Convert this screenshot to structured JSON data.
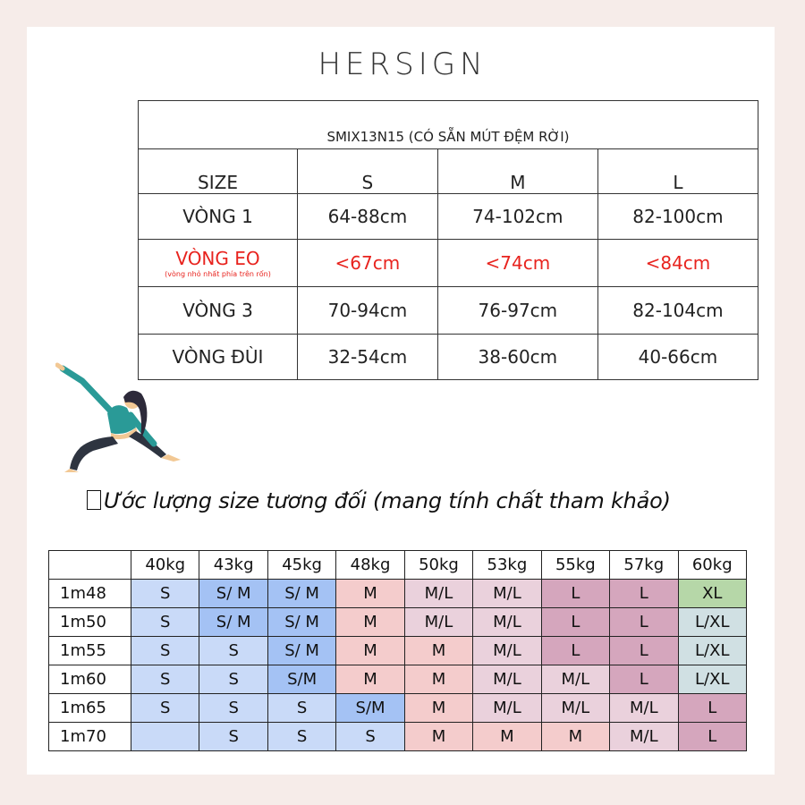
{
  "brand": "HERSIGN",
  "size_table": {
    "title": "SMIX13N15 (CÓ SẴN MÚT ĐỆM RỜI)",
    "header": [
      "SIZE",
      "S",
      "M",
      "L"
    ],
    "rows": [
      {
        "label": "VÒNG 1",
        "note": "",
        "values": [
          "64-88cm",
          "74-102cm",
          "82-100cm"
        ],
        "highlight": false
      },
      {
        "label": "VÒNG EO",
        "note": "(vòng nhỏ nhất phía trên rốn)",
        "values": [
          "<67cm",
          "<74cm",
          "<84cm"
        ],
        "highlight": true
      },
      {
        "label": "VÒNG 3",
        "note": "",
        "values": [
          "70-94cm",
          "76-97cm",
          "82-104cm"
        ],
        "highlight": false
      },
      {
        "label": "VÒNG ĐÙI",
        "note": "",
        "values": [
          "32-54cm",
          "38-60cm",
          "40-66cm"
        ],
        "highlight": false
      }
    ]
  },
  "figure_icon": "yoga-woman-illustration",
  "caption": "Ước lượng size tương đối (mang tính chất tham khảo)",
  "weight_table": {
    "weights": [
      "40kg",
      "43kg",
      "45kg",
      "48kg",
      "50kg",
      "53kg",
      "55kg",
      "57kg",
      "60kg"
    ],
    "rows": [
      {
        "height": "1m48",
        "sizes": [
          "S",
          "S/ M",
          "S/ M",
          "M",
          "M/L",
          "M/L",
          "L",
          "L",
          "XL"
        ]
      },
      {
        "height": "1m50",
        "sizes": [
          "S",
          "S/ M",
          "S/ M",
          "M",
          "M/L",
          "M/L",
          "L",
          "L",
          "L/XL"
        ]
      },
      {
        "height": "1m55",
        "sizes": [
          "S",
          "S",
          "S/ M",
          "M",
          "M",
          "M/L",
          "L",
          "L",
          "L/XL"
        ]
      },
      {
        "height": "1m60",
        "sizes": [
          "S",
          "S",
          "S/M",
          "M",
          "M",
          "M/L",
          "M/L",
          "L",
          "L/XL"
        ]
      },
      {
        "height": "1m65",
        "sizes": [
          "S",
          "S",
          "S",
          "S/M",
          "M",
          "M/L",
          "M/L",
          "M/L",
          "L"
        ]
      },
      {
        "height": "1m70",
        "sizes": [
          "",
          "S",
          "S",
          "S",
          "M",
          "M",
          "M",
          "M/L",
          "L"
        ]
      }
    ],
    "colors": {
      "S": "#c9daf8",
      "S/ M": "#a4c2f4",
      "S/M": "#a4c2f4",
      "M": "#f4cccc",
      "M/L": "#ead1dc",
      "L": "#d5a6bd",
      "L/XL": "#d0e0e3",
      "XL": "#b6d7a8",
      "": "#c9daf8"
    }
  },
  "colors": {
    "background": "#f6ece9",
    "red_text": "#e8231e",
    "figure_top": "#2a9a97",
    "figure_pants": "#2e3440",
    "figure_hair": "#2d2a3a",
    "figure_skin": "#f2c894"
  }
}
